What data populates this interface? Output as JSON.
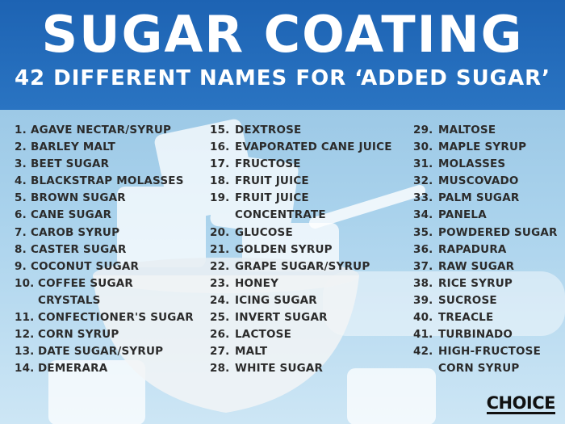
{
  "header": {
    "title": "SUGAR COATING",
    "subtitle": "42 DIFFERENT NAMES FOR ‘ADDED SUGAR’"
  },
  "columns": [
    [
      [
        "1.",
        "AGAVE NECTAR/SYRUP"
      ],
      [
        "2.",
        "BARLEY MALT"
      ],
      [
        "3.",
        "BEET SUGAR"
      ],
      [
        "4.",
        "BLACKSTRAP MOLASSES"
      ],
      [
        "5.",
        "BROWN SUGAR"
      ],
      [
        "6.",
        "CANE SUGAR"
      ],
      [
        "7.",
        "CAROB SYRUP"
      ],
      [
        "8.",
        "CASTER SUGAR"
      ],
      [
        "9.",
        "COCONUT SUGAR"
      ],
      [
        "10.",
        "COFFEE SUGAR",
        "CRYSTALS"
      ],
      [
        "11.",
        "CONFECTIONER'S SUGAR"
      ],
      [
        "12.",
        "CORN SYRUP"
      ],
      [
        "13.",
        "DATE SUGAR/SYRUP"
      ],
      [
        "14.",
        "DEMERARA"
      ]
    ],
    [
      [
        "15.",
        "DEXTROSE"
      ],
      [
        "16.",
        "EVAPORATED CANE JUICE"
      ],
      [
        "17.",
        "FRUCTOSE"
      ],
      [
        "18.",
        "FRUIT JUICE"
      ],
      [
        "19.",
        "FRUIT JUICE",
        "CONCENTRATE"
      ],
      [
        "20.",
        "GLUCOSE"
      ],
      [
        "21.",
        "GOLDEN SYRUP"
      ],
      [
        "22.",
        "GRAPE SUGAR/SYRUP"
      ],
      [
        "23.",
        "HONEY"
      ],
      [
        "24.",
        "ICING SUGAR"
      ],
      [
        "25.",
        "INVERT SUGAR"
      ],
      [
        "26.",
        "LACTOSE"
      ],
      [
        "27.",
        "MALT"
      ],
      [
        "28.",
        "WHITE SUGAR"
      ]
    ],
    [
      [
        "29.",
        "MALTOSE"
      ],
      [
        "30.",
        "MAPLE SYRUP"
      ],
      [
        "31.",
        "MOLASSES"
      ],
      [
        "32.",
        "MUSCOVADO"
      ],
      [
        "33.",
        "PALM SUGAR"
      ],
      [
        "34.",
        "PANELA"
      ],
      [
        "35.",
        "POWDERED SUGAR"
      ],
      [
        "36.",
        "RAPADURA"
      ],
      [
        "37.",
        "RAW SUGAR"
      ],
      [
        "38.",
        "RICE SYRUP"
      ],
      [
        "39.",
        "SUCROSE"
      ],
      [
        "40.",
        "TREACLE"
      ],
      [
        "41.",
        "TURBINADO"
      ],
      [
        "42.",
        "HIGH-FRUCTOSE",
        "CORN SYRUP"
      ]
    ]
  ],
  "logo": "CHOICE",
  "colors": {
    "header": "#1d63b3",
    "text": "#2b2b2b",
    "background": "#a9d2ec"
  }
}
